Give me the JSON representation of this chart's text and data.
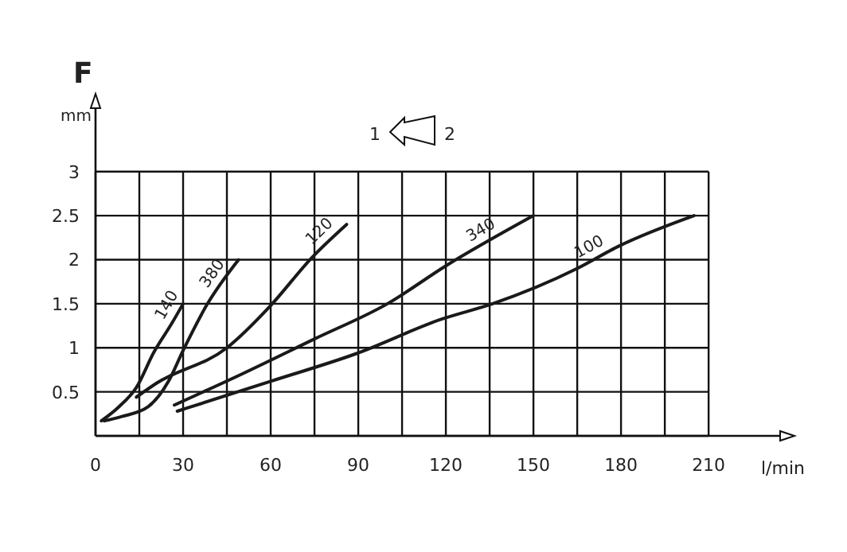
{
  "chart_data": {
    "type": "line",
    "title": "F",
    "ylabel": "mm",
    "xlabel": "l/min",
    "annotations": [
      "1",
      "2"
    ],
    "xlim": [
      0,
      234.5
    ],
    "ylim": [
      0,
      3.72
    ],
    "xticks": [
      0,
      {
        "value": 15,
        "label": null
      },
      30,
      {
        "value": 45,
        "label": null
      },
      60,
      {
        "value": 75,
        "label": null
      },
      90,
      {
        "value": 105,
        "label": null
      },
      120,
      {
        "value": 135,
        "label": null
      },
      150,
      {
        "value": 165,
        "label": null
      },
      180,
      {
        "value": 195,
        "label": null
      },
      210
    ],
    "yticks": [
      {
        "value": 0,
        "label": null
      },
      0.5,
      1,
      1.5,
      2,
      2.5,
      3
    ],
    "grid": true,
    "marker": "none",
    "line_style": "solid",
    "series": [
      {
        "name": "140",
        "color": "#1a1a1a",
        "x": [
          2,
          8,
          14,
          20,
          26,
          30
        ],
        "values": [
          0.17,
          0.33,
          0.55,
          0.95,
          1.27,
          1.5
        ]
      },
      {
        "name": "380",
        "color": "#1a1a1a",
        "x": [
          3,
          9,
          18,
          25,
          30,
          38,
          49
        ],
        "values": [
          0.17,
          0.22,
          0.33,
          0.62,
          0.97,
          1.48,
          2.0
        ]
      },
      {
        "name": "120",
        "color": "#1a1a1a",
        "x": [
          14,
          21,
          45,
          60,
          74,
          86
        ],
        "values": [
          0.44,
          0.6,
          1.0,
          1.48,
          2.02,
          2.4
        ]
      },
      {
        "name": "340",
        "color": "#1a1a1a",
        "x": [
          27,
          50,
          75,
          100,
          120,
          150
        ],
        "values": [
          0.35,
          0.7,
          1.1,
          1.5,
          1.93,
          2.5
        ]
      },
      {
        "name": "100",
        "color": "#1a1a1a",
        "x": [
          28,
          60,
          89,
          119,
          136,
          165,
          179,
          205
        ],
        "values": [
          0.28,
          0.62,
          0.93,
          1.33,
          1.5,
          1.9,
          2.15,
          2.5
        ]
      }
    ]
  }
}
